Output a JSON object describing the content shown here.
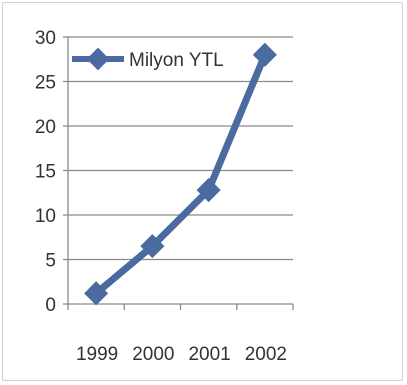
{
  "chart_data": {
    "type": "line",
    "x": [
      "1999",
      "2000",
      "2001",
      "2002"
    ],
    "series": [
      {
        "name": "Milyon YTL",
        "values": [
          1.2,
          6.5,
          12.8,
          28.0
        ]
      }
    ],
    "ylim": [
      0,
      30
    ],
    "yticks": [
      "0",
      "5",
      "10",
      "15",
      "20",
      "25",
      "30"
    ],
    "title": "",
    "xlabel": "",
    "ylabel": "",
    "grid": true,
    "legend_position": "top-left",
    "colors": {
      "series": "#4a6aa0",
      "grid": "#8a8a8a",
      "axis": "#8a8a8a"
    }
  }
}
